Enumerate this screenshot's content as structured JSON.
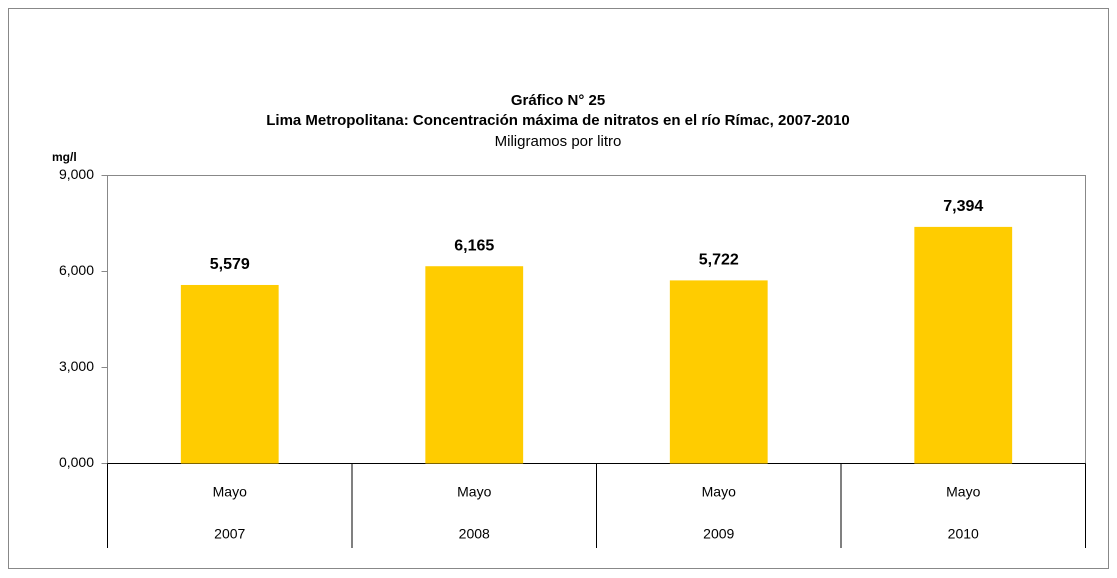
{
  "chart_data": {
    "type": "bar",
    "title": "Gráfico N° 25",
    "subtitle": "Lima Metropolitana: Concentración máxima de nitratos en el río Rímac, 2007-2010",
    "unit_note": "Miligramos por litro",
    "y_label": "mg/l",
    "categories": [
      [
        "Mayo",
        "2007"
      ],
      [
        "Mayo",
        "2008"
      ],
      [
        "Mayo",
        "2009"
      ],
      [
        "Mayo",
        "2010"
      ]
    ],
    "values": [
      5579,
      6165,
      5722,
      7394
    ],
    "value_labels": [
      "5,579",
      "6,165",
      "5,722",
      "7,394"
    ],
    "color": "#ffcc00",
    "ylim": [
      0,
      9000
    ],
    "yticks": [
      {
        "value": 0,
        "label": "0,000"
      },
      {
        "value": 3000,
        "label": "3,000"
      },
      {
        "value": 6000,
        "label": "6,000"
      },
      {
        "value": 9000,
        "label": "9,000"
      }
    ],
    "grid": false
  }
}
